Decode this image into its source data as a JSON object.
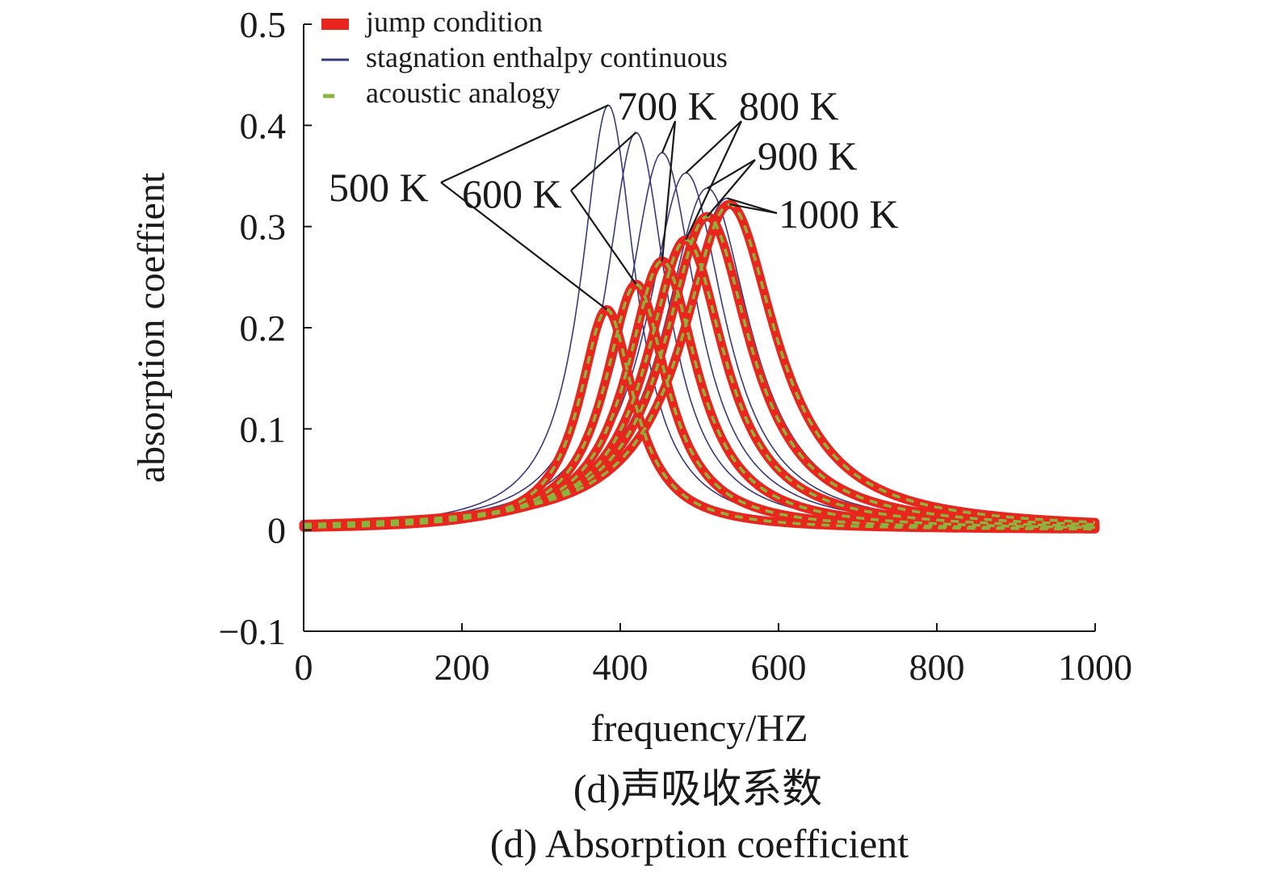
{
  "chart_data": {
    "type": "line",
    "title": "",
    "xlabel": "frequency/HZ",
    "ylabel": "absorption coeffient",
    "xlim": [
      0,
      1000
    ],
    "ylim": [
      -0.1,
      0.5
    ],
    "x_ticks": [
      0,
      200,
      400,
      600,
      800,
      1000
    ],
    "x_tick_labels": [
      "0",
      "200",
      "400",
      "600",
      "800",
      "1000"
    ],
    "y_ticks": [
      -0.1,
      0,
      0.1,
      0.2,
      0.3,
      0.4,
      0.5
    ],
    "y_tick_labels": [
      "−0.1",
      "0",
      "0.1",
      "0.2",
      "0.3",
      "0.4",
      "0.5"
    ],
    "grid": false,
    "legend_position": "top-left",
    "legend": [
      {
        "label": "jump condition",
        "color": "#e8261e",
        "style": "thick"
      },
      {
        "label": "stagnation enthalpy continuous",
        "color": "#3a3a7a",
        "style": "thin"
      },
      {
        "label": "acoustic analogy",
        "color": "#8cb43c",
        "style": "dashed"
      }
    ],
    "temperature_labels": [
      "500 K",
      "600 K",
      "700 K",
      "800 K",
      "900 K",
      "1000 K"
    ],
    "series": [
      {
        "method": "stagnation enthalpy continuous",
        "temperature": "500 K",
        "peak_frequency": 385,
        "peak_value": 0.42,
        "half_width": 42
      },
      {
        "method": "stagnation enthalpy continuous",
        "temperature": "600 K",
        "peak_frequency": 420,
        "peak_value": 0.393,
        "half_width": 48
      },
      {
        "method": "stagnation enthalpy continuous",
        "temperature": "700 K",
        "peak_frequency": 453,
        "peak_value": 0.373,
        "half_width": 54
      },
      {
        "method": "stagnation enthalpy continuous",
        "temperature": "800 K",
        "peak_frequency": 483,
        "peak_value": 0.353,
        "half_width": 60
      },
      {
        "method": "stagnation enthalpy continuous",
        "temperature": "900 K",
        "peak_frequency": 510,
        "peak_value": 0.338,
        "half_width": 66
      },
      {
        "method": "stagnation enthalpy continuous",
        "temperature": "1000 K",
        "peak_frequency": 535,
        "peak_value": 0.328,
        "half_width": 72
      },
      {
        "method": "jump condition / acoustic analogy",
        "temperature": "500 K",
        "peak_frequency": 383,
        "peak_value": 0.218,
        "half_width": 42
      },
      {
        "method": "jump condition / acoustic analogy",
        "temperature": "600 K",
        "peak_frequency": 420,
        "peak_value": 0.243,
        "half_width": 48
      },
      {
        "method": "jump condition / acoustic analogy",
        "temperature": "700 K",
        "peak_frequency": 453,
        "peak_value": 0.266,
        "half_width": 54
      },
      {
        "method": "jump condition / acoustic analogy",
        "temperature": "800 K",
        "peak_frequency": 483,
        "peak_value": 0.287,
        "half_width": 60
      },
      {
        "method": "jump condition / acoustic analogy",
        "temperature": "900 K",
        "peak_frequency": 510,
        "peak_value": 0.31,
        "half_width": 66
      },
      {
        "method": "jump condition / acoustic analogy",
        "temperature": "1000 K",
        "peak_frequency": 538,
        "peak_value": 0.322,
        "half_width": 72
      }
    ]
  },
  "caption": {
    "chinese": "(d)声吸收系数",
    "english": "(d) Absorption coefficient"
  }
}
